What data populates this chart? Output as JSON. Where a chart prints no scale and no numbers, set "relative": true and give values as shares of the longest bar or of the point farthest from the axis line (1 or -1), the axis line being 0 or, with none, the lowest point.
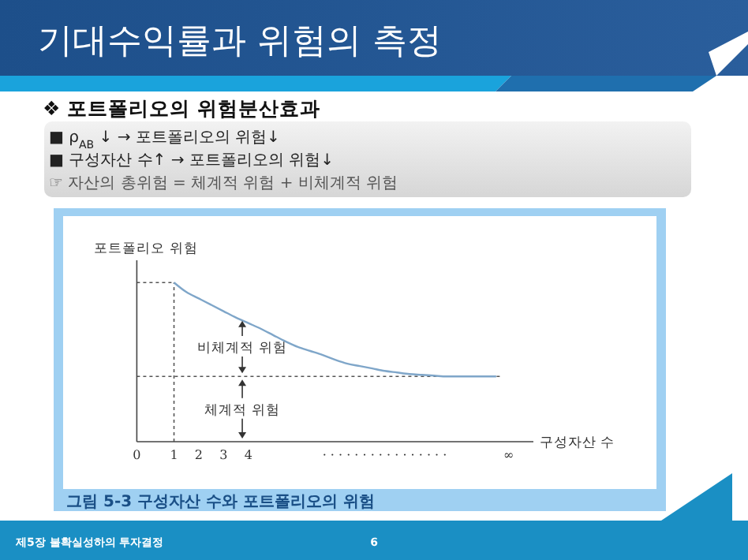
{
  "chart_data": {
    "type": "line",
    "relative": true,
    "title": "기대수익률과 위험의 측정",
    "subtitle": "❖ 포트폴리오의 위험분산효과",
    "xlabel": "구성자산 수",
    "ylabel": "포트폴리오 위험",
    "categories": [
      "0",
      null,
      null,
      "1",
      null,
      "2",
      null,
      "3",
      null,
      "4",
      null,
      null,
      null,
      null,
      null,
      null,
      null,
      null,
      null,
      null,
      "· · · · · · · · · · · · · · · ·",
      null,
      null,
      null,
      null,
      null,
      null,
      null,
      null,
      null,
      "∞",
      null,
      null
    ],
    "series": [
      {
        "color": "#7fa6c9",
        "values": [
          null,
          null,
          null,
          1,
          0.94,
          0.9,
          0.86,
          0.82,
          0.78,
          0.745,
          0.71,
          0.67,
          0.63,
          0.595,
          0.57,
          0.545,
          0.515,
          0.49,
          0.475,
          0.46,
          0.445,
          0.435,
          0.425,
          0.42,
          0.415,
          0.41,
          0.41,
          0.41,
          0.41,
          0.41,
          null,
          null,
          null
        ]
      }
    ],
    "ref_lines": [
      {
        "axis": "y",
        "value": 1
      },
      {
        "axis": "y",
        "value": 0.41
      },
      {
        "axis": "x",
        "value": "1"
      }
    ],
    "line_style": "solid",
    "annotations": [
      "비체계적 위험",
      "체계적 위험",
      "■ ρ$_{AB}$ ↓ → 포트폴리오의 위험↓",
      "■ 구성자산 수↑ → 포트폴리오의 위험↓",
      "☞  자산의 총위험 = 체계적 위험 + 비체계적 위험",
      "그림 5-3   구성자산 수와 포트폴리오의 위험",
      "제5장 불확실성하의 투자결정",
      "6"
    ]
  }
}
